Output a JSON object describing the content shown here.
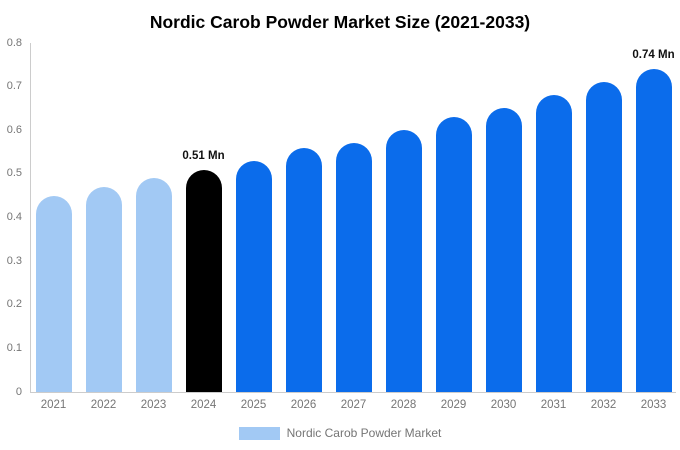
{
  "title": "Nordic Carob Powder Market Size (2021-2033)",
  "legend": {
    "label": "Nordic Carob Powder Market",
    "swatch_color": "#A2C9F4"
  },
  "colors": {
    "historical_bar": "#A2C9F4",
    "highlight_bar": "#000000",
    "forecast_bar": "#0B6CEB",
    "axis_line": "#CCCCCC",
    "tick_text": "#757575",
    "annotation_text": "#111111",
    "title_text": "#000000",
    "background": "#FFFFFF"
  },
  "chart_data": {
    "type": "bar",
    "title": "Nordic Carob Powder Market Size (2021-2033)",
    "categories": [
      "2021",
      "2022",
      "2023",
      "2024",
      "2025",
      "2026",
      "2027",
      "2028",
      "2029",
      "2030",
      "2031",
      "2032",
      "2033"
    ],
    "values": [
      0.45,
      0.47,
      0.49,
      0.51,
      0.53,
      0.56,
      0.57,
      0.6,
      0.63,
      0.65,
      0.68,
      0.71,
      0.74
    ],
    "unit": "Mn",
    "bar_colors": [
      "#A2C9F4",
      "#A2C9F4",
      "#A2C9F4",
      "#000000",
      "#0B6CEB",
      "#0B6CEB",
      "#0B6CEB",
      "#0B6CEB",
      "#0B6CEB",
      "#0B6CEB",
      "#0B6CEB",
      "#0B6CEB",
      "#0B6CEB"
    ],
    "yticks": [
      "0.8",
      "0.7",
      "0.6",
      "0.5",
      "0.4",
      "0.3",
      "0.2",
      "0.1",
      "0"
    ],
    "ylim": [
      0,
      0.8
    ],
    "xlabel": "",
    "ylabel": "",
    "grid": false,
    "legend_position": "bottom",
    "annotations": [
      {
        "index": 3,
        "text": "0.51 Mn"
      },
      {
        "index": 12,
        "text": "0.74 Mn"
      }
    ]
  }
}
